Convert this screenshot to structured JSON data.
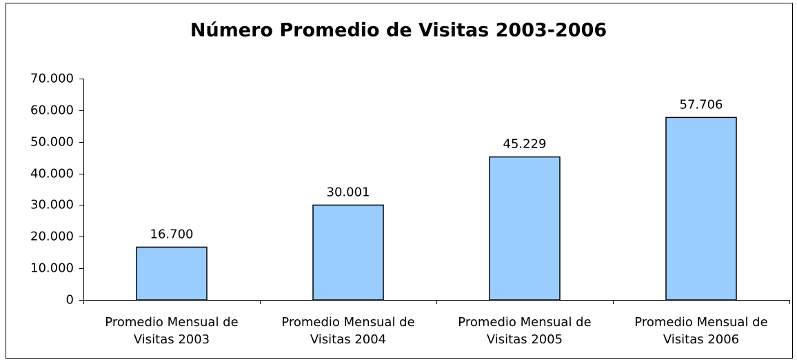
{
  "chart_data": {
    "type": "bar",
    "title": "Número Promedio de Visitas 2003-2006",
    "categories": [
      "Promedio Mensual de Visitas 2003",
      "Promedio Mensual de Visitas 2004",
      "Promedio Mensual de Visitas 2005",
      "Promedio Mensual de Visitas 2006"
    ],
    "values": [
      16700,
      30001,
      45229,
      57706
    ],
    "value_labels": [
      "16.700",
      "30.001",
      "45.229",
      "57.706"
    ],
    "color": "#99ccff",
    "ylim": [
      0,
      70000
    ],
    "yticks": [
      0,
      {
        "value": 10000,
        "label": "10.000"
      },
      {
        "value": 20000,
        "label": "20.000"
      },
      {
        "value": 30000,
        "label": "30.000"
      },
      {
        "value": 40000,
        "label": "40.000"
      },
      {
        "value": 50000,
        "label": "50.000"
      },
      {
        "value": 60000,
        "label": "60.000"
      },
      {
        "value": 70000,
        "label": "70.000"
      }
    ],
    "grid": false
  }
}
